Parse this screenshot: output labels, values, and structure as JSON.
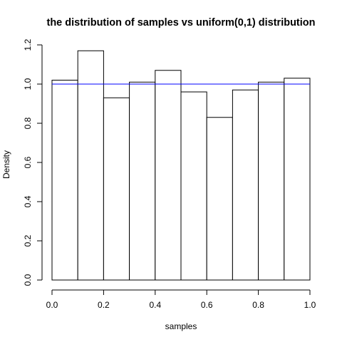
{
  "chart_data": {
    "type": "bar",
    "title": "the distribution of samples vs uniform(0,1) distribution",
    "xlabel": "samples",
    "ylabel": "Density",
    "xlim": [
      0,
      1
    ],
    "ylim": [
      0,
      1.2
    ],
    "xticks": [
      "0.0",
      "0.2",
      "0.4",
      "0.6",
      "0.8",
      "1.0"
    ],
    "yticks": [
      "0.0",
      "0.2",
      "0.4",
      "0.6",
      "0.8",
      "1.0",
      "1.2"
    ],
    "bins": [
      {
        "x0": 0.0,
        "x1": 0.1,
        "density": 1.02
      },
      {
        "x0": 0.1,
        "x1": 0.2,
        "density": 1.17
      },
      {
        "x0": 0.2,
        "x1": 0.3,
        "density": 0.93
      },
      {
        "x0": 0.3,
        "x1": 0.4,
        "density": 1.01
      },
      {
        "x0": 0.4,
        "x1": 0.5,
        "density": 1.07
      },
      {
        "x0": 0.5,
        "x1": 0.6,
        "density": 0.96
      },
      {
        "x0": 0.6,
        "x1": 0.7,
        "density": 0.83
      },
      {
        "x0": 0.7,
        "x1": 0.8,
        "density": 0.97
      },
      {
        "x0": 0.8,
        "x1": 0.9,
        "density": 1.01
      },
      {
        "x0": 0.9,
        "x1": 1.0,
        "density": 1.03
      }
    ],
    "reference_line": {
      "y": 1.0,
      "color": "#0000ff"
    },
    "bar_fill": "#ffffff",
    "bar_stroke": "#000000",
    "grid": false,
    "legend": "none"
  }
}
